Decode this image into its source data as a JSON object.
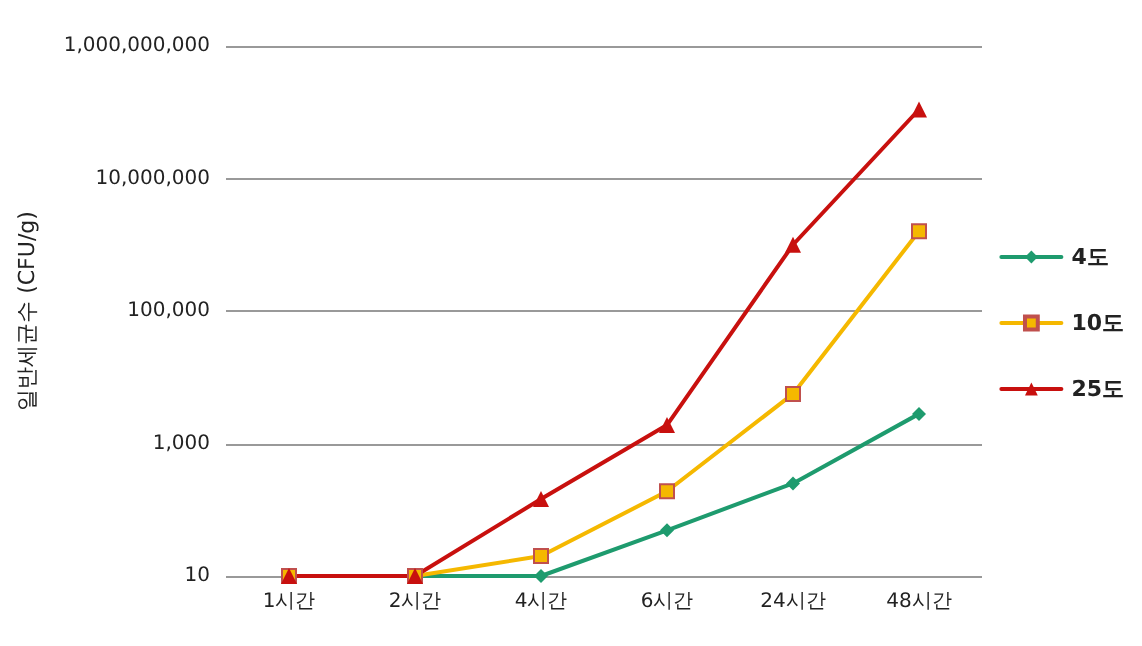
{
  "chart_data": {
    "type": "line",
    "ylabel": "일반세균수 (CFU/g)",
    "categories": [
      "1시간",
      "2시간",
      "4시간",
      "6시간",
      "24시간",
      "48시간"
    ],
    "series": [
      {
        "name": "4도",
        "color": "#1e9b6e",
        "marker": "diamond",
        "values": [
          10,
          10,
          10,
          49,
          250,
          2800
        ]
      },
      {
        "name": "10도",
        "color": "#f5b800",
        "marker": "square",
        "values": [
          10,
          10,
          20,
          190,
          5600,
          1600000
        ]
      },
      {
        "name": "25도",
        "color": "#c8100e",
        "marker": "triangle",
        "values": [
          10,
          10,
          145,
          1900,
          1000000,
          110000000
        ]
      }
    ],
    "log": "y",
    "ylim": [
      10,
      1000000000
    ],
    "yticks": [
      10,
      {
        "value": 1000,
        "label": "1,000"
      },
      {
        "value": 100000,
        "label": "100,000"
      },
      {
        "value": 10000000,
        "label": "10,000,000"
      },
      {
        "value": 1000000000,
        "label": "1,000,000,000"
      }
    ],
    "grid": "y",
    "legend": "right"
  }
}
